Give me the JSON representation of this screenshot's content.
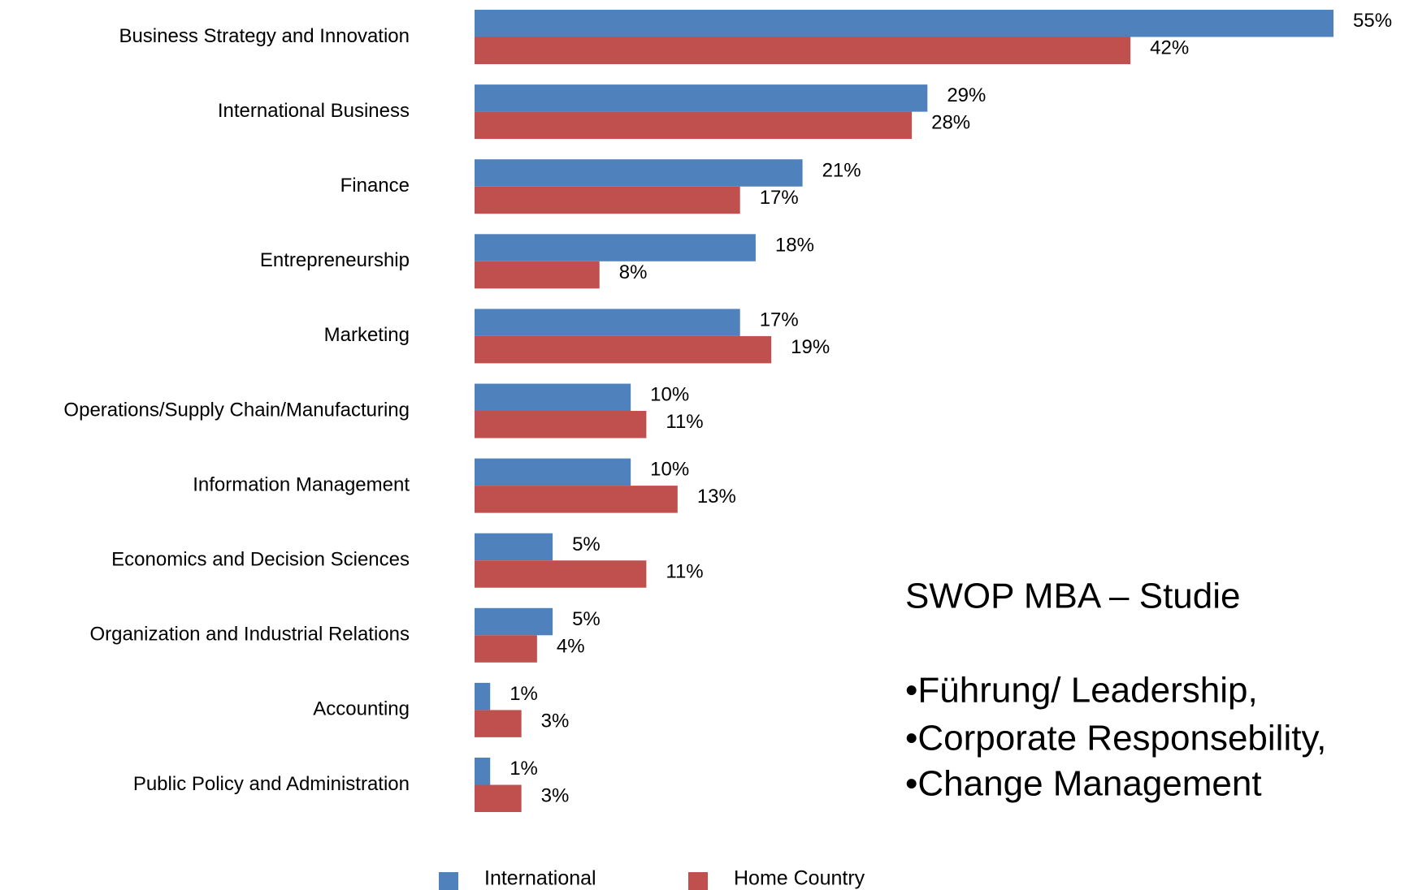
{
  "chart_data": {
    "type": "hbar",
    "categories": [
      "Business Strategy and Innovation",
      "International Business",
      "Finance",
      "Entrepreneurship",
      "Marketing",
      "Operations/Supply Chain/Manufacturing",
      "Information Management",
      "Economics and Decision Sciences",
      "Organization and Industrial Relations",
      "Accounting",
      "Public Policy and Administration"
    ],
    "series": [
      {
        "name": "International",
        "color": "#4f81bd",
        "values": [
          55,
          29,
          21,
          18,
          17,
          10,
          10,
          5,
          5,
          1,
          1
        ],
        "value_labels": [
          "55%",
          "29%",
          "21%",
          "18%",
          "17%",
          "10%",
          "10%",
          "5%",
          "5%",
          "1%",
          "1%"
        ]
      },
      {
        "name": "Home Country",
        "color": "#c0504d",
        "values": [
          42,
          28,
          17,
          8,
          19,
          11,
          13,
          11,
          4,
          3,
          3
        ],
        "value_labels": [
          "42%",
          "28%",
          "17%",
          "8%",
          "19%",
          "11%",
          "13%",
          "11%",
          "4%",
          "3%",
          "3%"
        ]
      }
    ],
    "legend": "bottom",
    "annotations": [
      "SWOP MBA – Studie",
      "•Führung/ Leadership,",
      "•Corporate Responsebility,",
      "•Change Management"
    ]
  }
}
